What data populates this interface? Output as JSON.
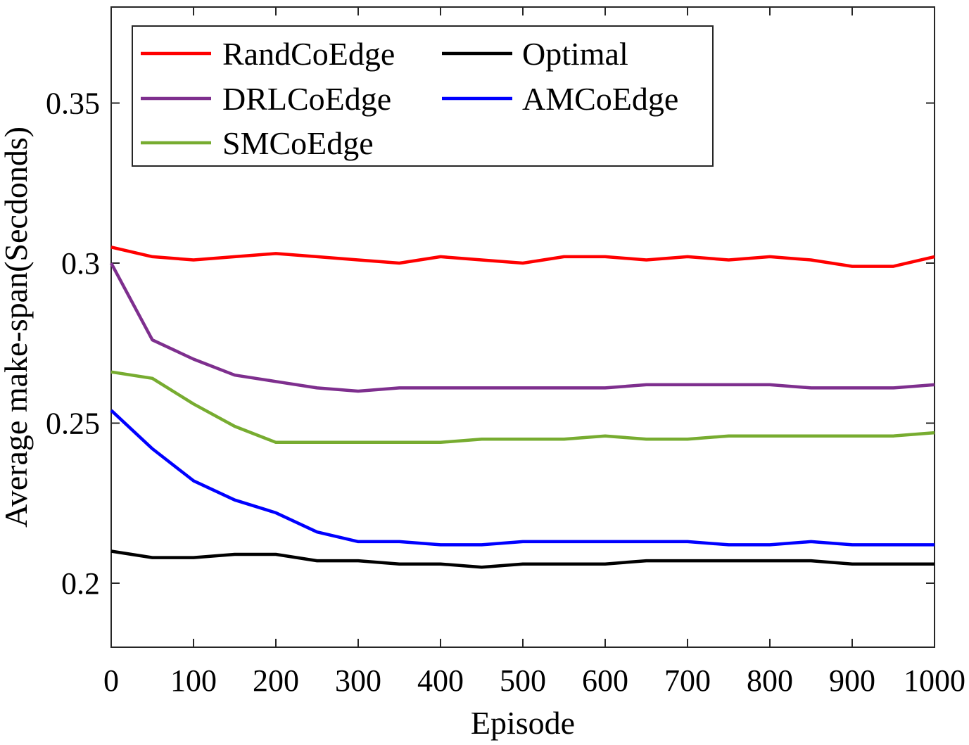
{
  "chart_data": {
    "type": "line",
    "xlabel": "Episode",
    "ylabel": "Average make-span(Secdonds)",
    "xlim": [
      0,
      1000
    ],
    "ylim": [
      0.18,
      0.38
    ],
    "xticks": [
      0,
      100,
      200,
      300,
      400,
      500,
      600,
      700,
      800,
      900,
      1000
    ],
    "xtick_labels": [
      "0",
      "100",
      "200",
      "300",
      "400",
      "500",
      "600",
      "700",
      "800",
      "900",
      "1000"
    ],
    "yticks": [
      0.2,
      0.25,
      0.3,
      0.35
    ],
    "ytick_labels": [
      "0.2",
      "0.25",
      "0.3",
      "0.35"
    ],
    "grid": false,
    "legend": {
      "position": "top-left",
      "columns": 2
    },
    "x": [
      0,
      50,
      100,
      150,
      200,
      250,
      300,
      350,
      400,
      450,
      500,
      550,
      600,
      650,
      700,
      750,
      800,
      850,
      900,
      950,
      1000
    ],
    "series": [
      {
        "name": "RandCoEdge",
        "color": "#ff0000",
        "values": [
          0.305,
          0.302,
          0.301,
          0.302,
          0.303,
          0.302,
          0.301,
          0.3,
          0.302,
          0.301,
          0.3,
          0.302,
          0.302,
          0.301,
          0.302,
          0.301,
          0.302,
          0.301,
          0.299,
          0.299,
          0.302
        ]
      },
      {
        "name": "Optimal",
        "color": "#000000",
        "values": [
          0.21,
          0.208,
          0.208,
          0.209,
          0.209,
          0.207,
          0.207,
          0.206,
          0.206,
          0.205,
          0.206,
          0.206,
          0.206,
          0.207,
          0.207,
          0.207,
          0.207,
          0.207,
          0.206,
          0.206,
          0.206
        ]
      },
      {
        "name": "DRLCoEdge",
        "color": "#7e2f8e",
        "values": [
          0.3,
          0.276,
          0.27,
          0.265,
          0.263,
          0.261,
          0.26,
          0.261,
          0.261,
          0.261,
          0.261,
          0.261,
          0.261,
          0.262,
          0.262,
          0.262,
          0.262,
          0.261,
          0.261,
          0.261,
          0.262
        ]
      },
      {
        "name": "AMCoEdge",
        "color": "#0000ff",
        "values": [
          0.254,
          0.242,
          0.232,
          0.226,
          0.222,
          0.216,
          0.213,
          0.213,
          0.212,
          0.212,
          0.213,
          0.213,
          0.213,
          0.213,
          0.213,
          0.212,
          0.212,
          0.213,
          0.212,
          0.212,
          0.212
        ]
      },
      {
        "name": "SMCoEdge",
        "color": "#77ac30",
        "values": [
          0.266,
          0.264,
          0.256,
          0.249,
          0.244,
          0.244,
          0.244,
          0.244,
          0.244,
          0.245,
          0.245,
          0.245,
          0.246,
          0.245,
          0.245,
          0.246,
          0.246,
          0.246,
          0.246,
          0.246,
          0.247
        ]
      }
    ]
  }
}
